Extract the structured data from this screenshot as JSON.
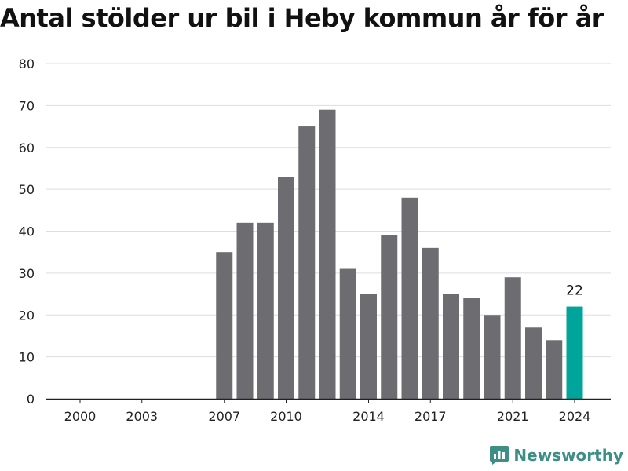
{
  "title": "Antal stölder ur bil i Heby kommun år för år",
  "brand": {
    "name": "Newsworthy",
    "icon": "bar-chart-logo-icon",
    "color": "#3d8f86"
  },
  "chart_data": {
    "type": "bar",
    "title": "Antal stölder ur bil i Heby kommun år för år",
    "xlabel": "",
    "ylabel": "",
    "categories": [
      2000,
      2001,
      2002,
      2003,
      2004,
      2005,
      2006,
      2007,
      2008,
      2009,
      2010,
      2011,
      2012,
      2013,
      2014,
      2015,
      2016,
      2017,
      2018,
      2019,
      2020,
      2021,
      2022,
      2023,
      2024
    ],
    "values": [
      null,
      null,
      null,
      null,
      null,
      null,
      null,
      35,
      42,
      42,
      53,
      65,
      69,
      31,
      25,
      39,
      48,
      36,
      25,
      24,
      20,
      29,
      17,
      14,
      22
    ],
    "x_tick_labels": [
      "2000",
      "2003",
      "2007",
      "2010",
      "2014",
      "2017",
      "2021",
      "2024"
    ],
    "y_ticks": [
      0,
      10,
      20,
      30,
      40,
      50,
      60,
      70,
      80
    ],
    "ylim": [
      0,
      80
    ],
    "highlight": {
      "category": 2024,
      "label": "22"
    },
    "grid": true,
    "colors": {
      "bar": "#6d6c71",
      "highlight": "#00a49a",
      "grid": "#dddddd",
      "axis": "#222222"
    }
  }
}
